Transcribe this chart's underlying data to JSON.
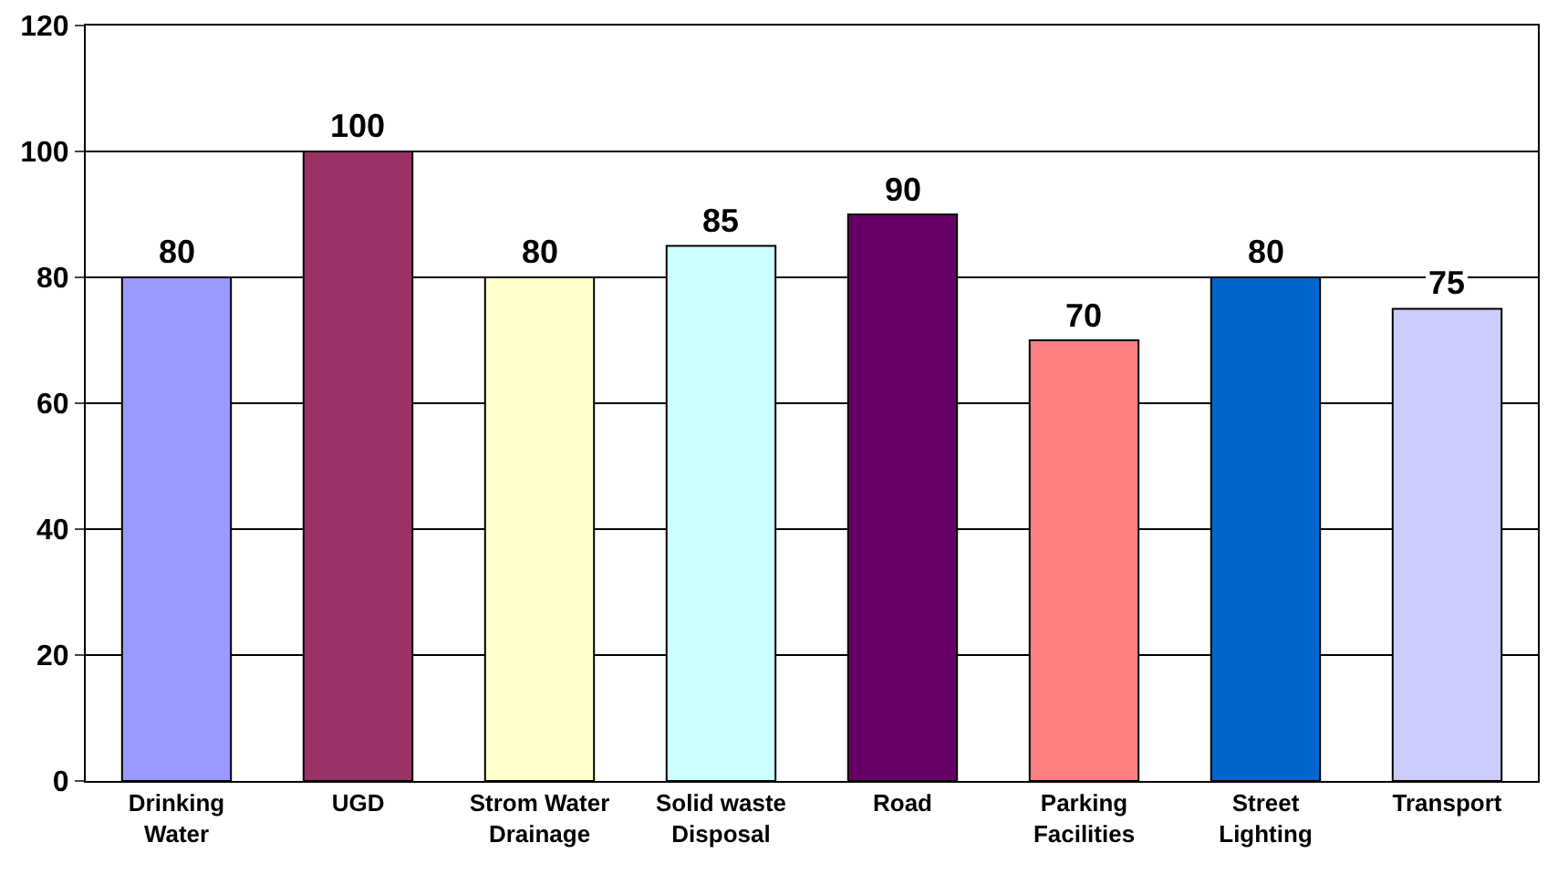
{
  "chart_data": {
    "type": "bar",
    "categories": [
      "Drinking\nWater",
      "UGD",
      "Strom Water\nDrainage",
      "Solid waste\nDisposal",
      "Road",
      "Parking\nFacilities",
      "Street\nLighting",
      "Transport"
    ],
    "values": [
      80,
      100,
      80,
      85,
      90,
      70,
      80,
      75
    ],
    "colors": [
      "#9999ff",
      "#993366",
      "#ffffcc",
      "#ccffff",
      "#660066",
      "#ff8080",
      "#0066cc",
      "#ccccff"
    ],
    "ylim": [
      0,
      120
    ],
    "yticks": [
      0,
      20,
      40,
      60,
      80,
      100,
      120
    ],
    "grid": "y",
    "data_labels": true,
    "legend": false
  }
}
